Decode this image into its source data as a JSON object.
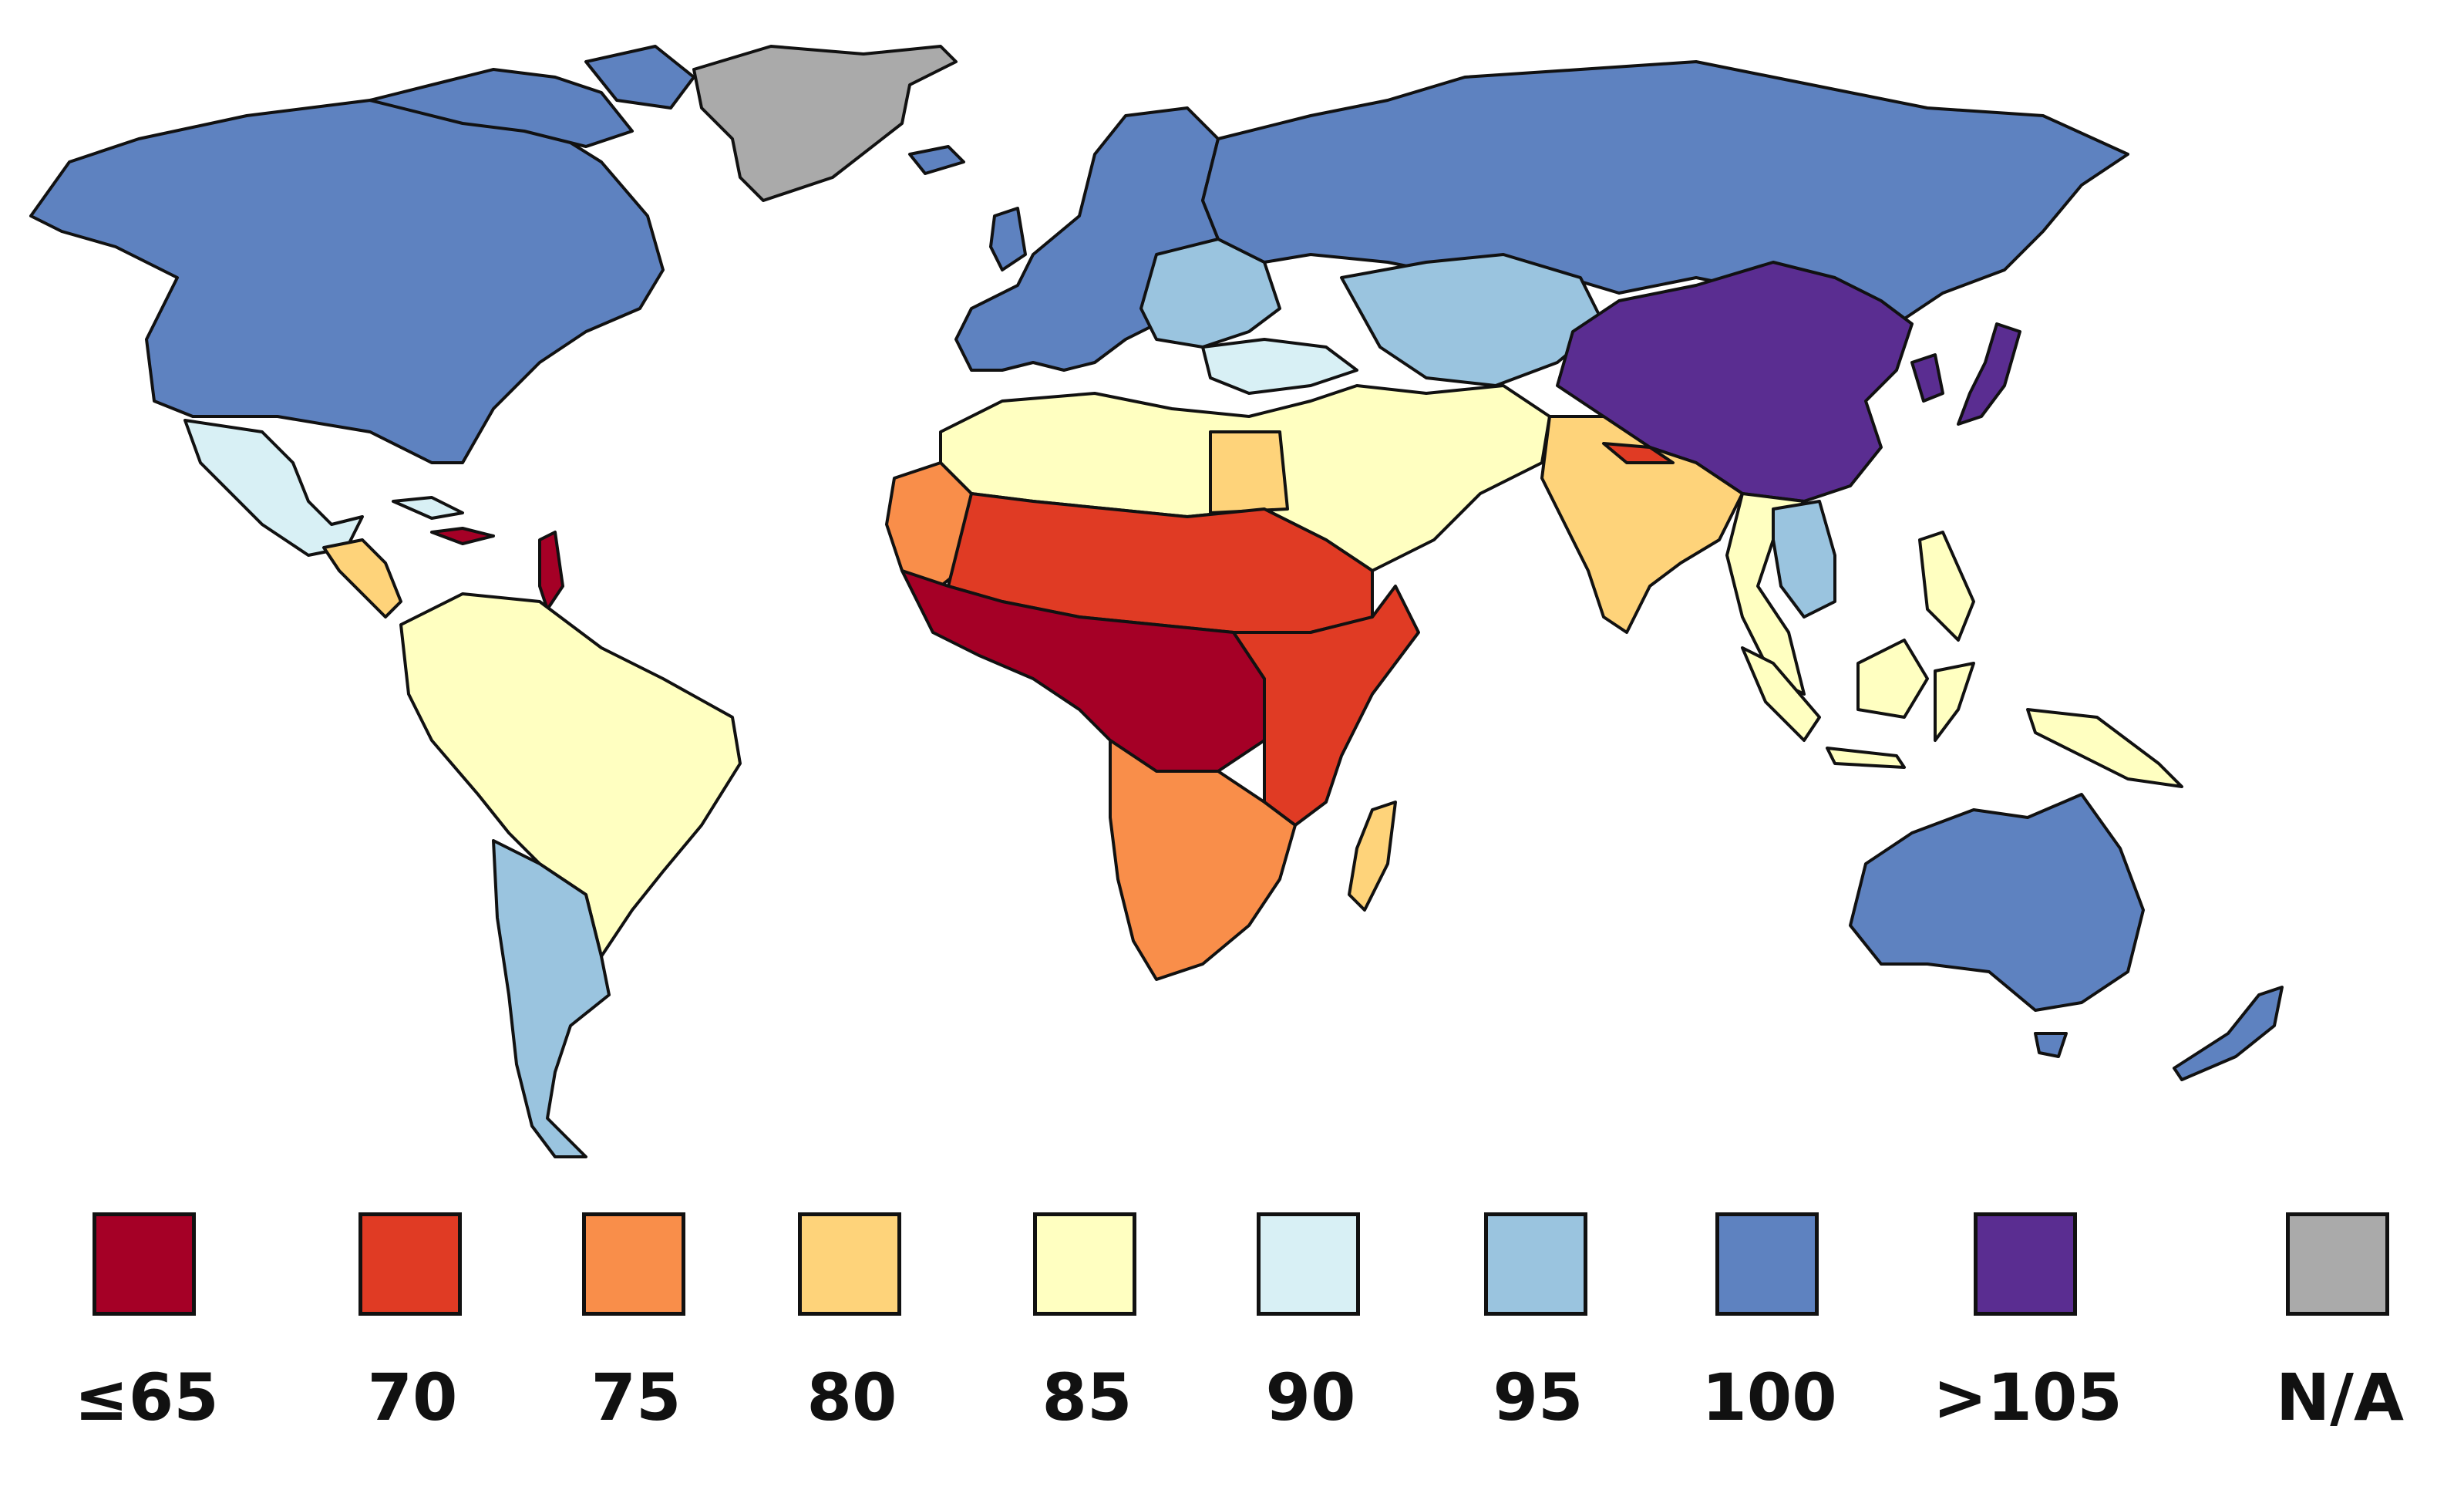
{
  "map": {
    "palette": {
      "le65": "#a50026",
      "v70": "#e03b24",
      "v75": "#f98e4a",
      "v80": "#fed37a",
      "v85": "#ffffc1",
      "v90": "#d8f0f5",
      "v95": "#9ac4df",
      "v100": "#5e82c0",
      "gt105": "#5a2d91",
      "na": "#aaaaaa"
    },
    "regions": [
      {
        "region": "North America (Canada, USA)",
        "category": "v100"
      },
      {
        "region": "Greenland",
        "category": "na"
      },
      {
        "region": "Mexico",
        "category": "v90"
      },
      {
        "region": "Central America",
        "category": "v80"
      },
      {
        "region": "Caribbean islands",
        "category": "le65"
      },
      {
        "region": "South America (north and central)",
        "category": "v85"
      },
      {
        "region": "Argentina and Chile",
        "category": "v95"
      },
      {
        "region": "Western and Northern Europe",
        "category": "v100"
      },
      {
        "region": "Eastern Europe",
        "category": "v95"
      },
      {
        "region": "Turkey and Caucasus",
        "category": "v90"
      },
      {
        "region": "Russia",
        "category": "v100"
      },
      {
        "region": "Central Asia",
        "category": "v95"
      },
      {
        "region": "China",
        "category": "gt105"
      },
      {
        "region": "Japan and Korea",
        "category": "gt105"
      },
      {
        "region": "North Africa and Middle East",
        "category": "v85"
      },
      {
        "region": "Egypt",
        "category": "v80"
      },
      {
        "region": "West Africa coast",
        "category": "v75"
      },
      {
        "region": "Sahel and Sudan",
        "category": "v70"
      },
      {
        "region": "Central Africa",
        "category": "le65"
      },
      {
        "region": "East Africa",
        "category": "v70"
      },
      {
        "region": "Southern Africa",
        "category": "v75"
      },
      {
        "region": "Madagascar",
        "category": "v80"
      },
      {
        "region": "India",
        "category": "v80"
      },
      {
        "region": "Nepal",
        "category": "v70"
      },
      {
        "region": "Southeast Asia",
        "category": "v85"
      },
      {
        "region": "Vietnam and Thailand area",
        "category": "v95"
      },
      {
        "region": "Indonesia and Philippines",
        "category": "v85"
      },
      {
        "region": "Australia and New Zealand",
        "category": "v100"
      }
    ]
  },
  "legend": {
    "items": [
      {
        "label": "≤65",
        "color": "#a50026"
      },
      {
        "label": "70",
        "color": "#e03b24"
      },
      {
        "label": "75",
        "color": "#f98e4a"
      },
      {
        "label": "80",
        "color": "#fed37a"
      },
      {
        "label": "85",
        "color": "#ffffc1"
      },
      {
        "label": "90",
        "color": "#d8f0f5"
      },
      {
        "label": "95",
        "color": "#9ac4df"
      },
      {
        "label": "100",
        "color": "#5e82c0"
      },
      {
        "label": ">105",
        "color": "#5a2d91"
      },
      {
        "label": "N/A",
        "color": "#aaaaaa"
      }
    ]
  }
}
